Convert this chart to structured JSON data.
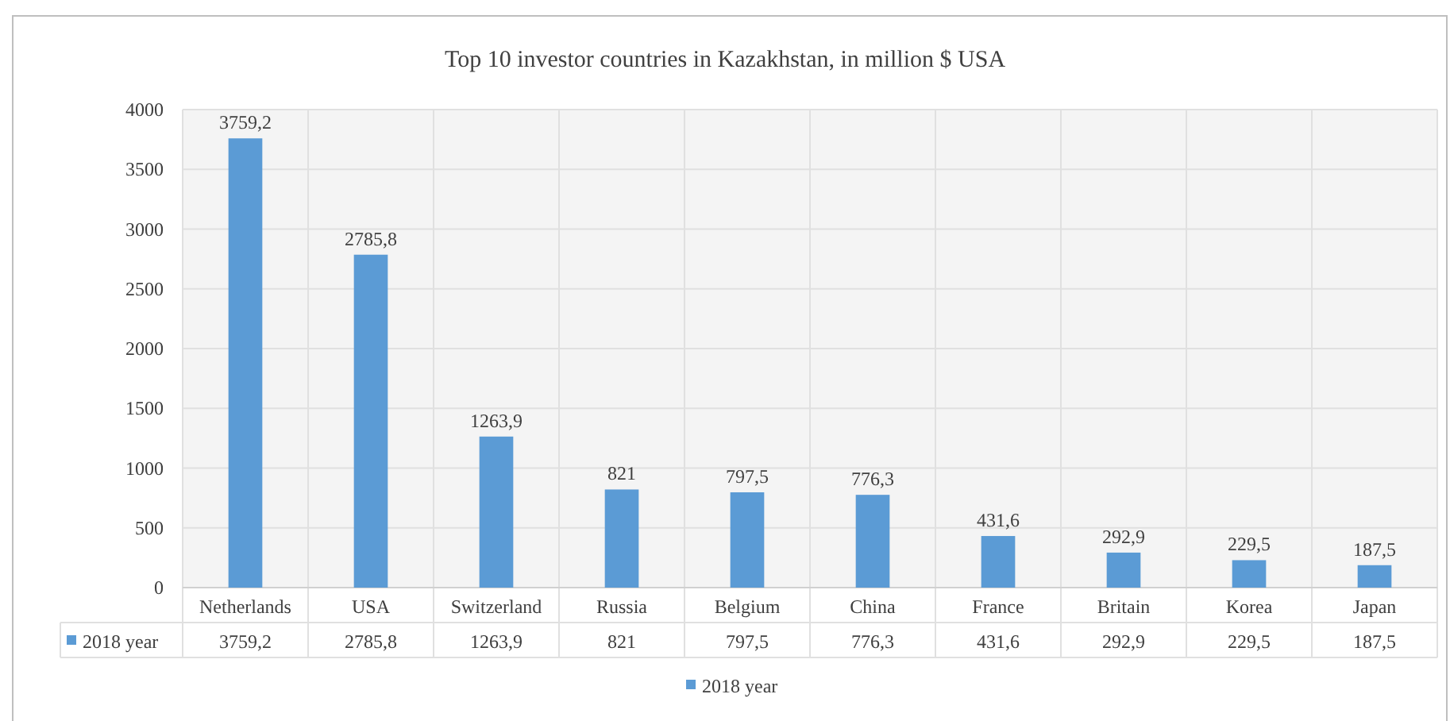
{
  "chart_data": {
    "type": "bar",
    "title": "Top 10 investor countries in Kazakhstan,  in million $ USA",
    "categories": [
      "Netherlands",
      "USA",
      "Switzerland",
      "Russia",
      "Belgium",
      "China",
      "France",
      "Britain",
      "Korea",
      "Japan"
    ],
    "series": [
      {
        "name": "2018 year",
        "color": "#5b9bd5",
        "values": [
          3759.2,
          2785.8,
          1263.9,
          821,
          797.5,
          776.3,
          431.6,
          292.9,
          229.5,
          187.5
        ],
        "value_labels": [
          "3759,2",
          "2785,8",
          "1263,9",
          "821",
          "797,5",
          "776,3",
          "431,6",
          "292,9",
          "229,5",
          "187,5"
        ]
      }
    ],
    "ylim": [
      0,
      4000
    ],
    "yticks": [
      0,
      500,
      1000,
      1500,
      2000,
      2500,
      3000,
      3500,
      4000
    ],
    "grid": true,
    "legend": "bottom"
  }
}
